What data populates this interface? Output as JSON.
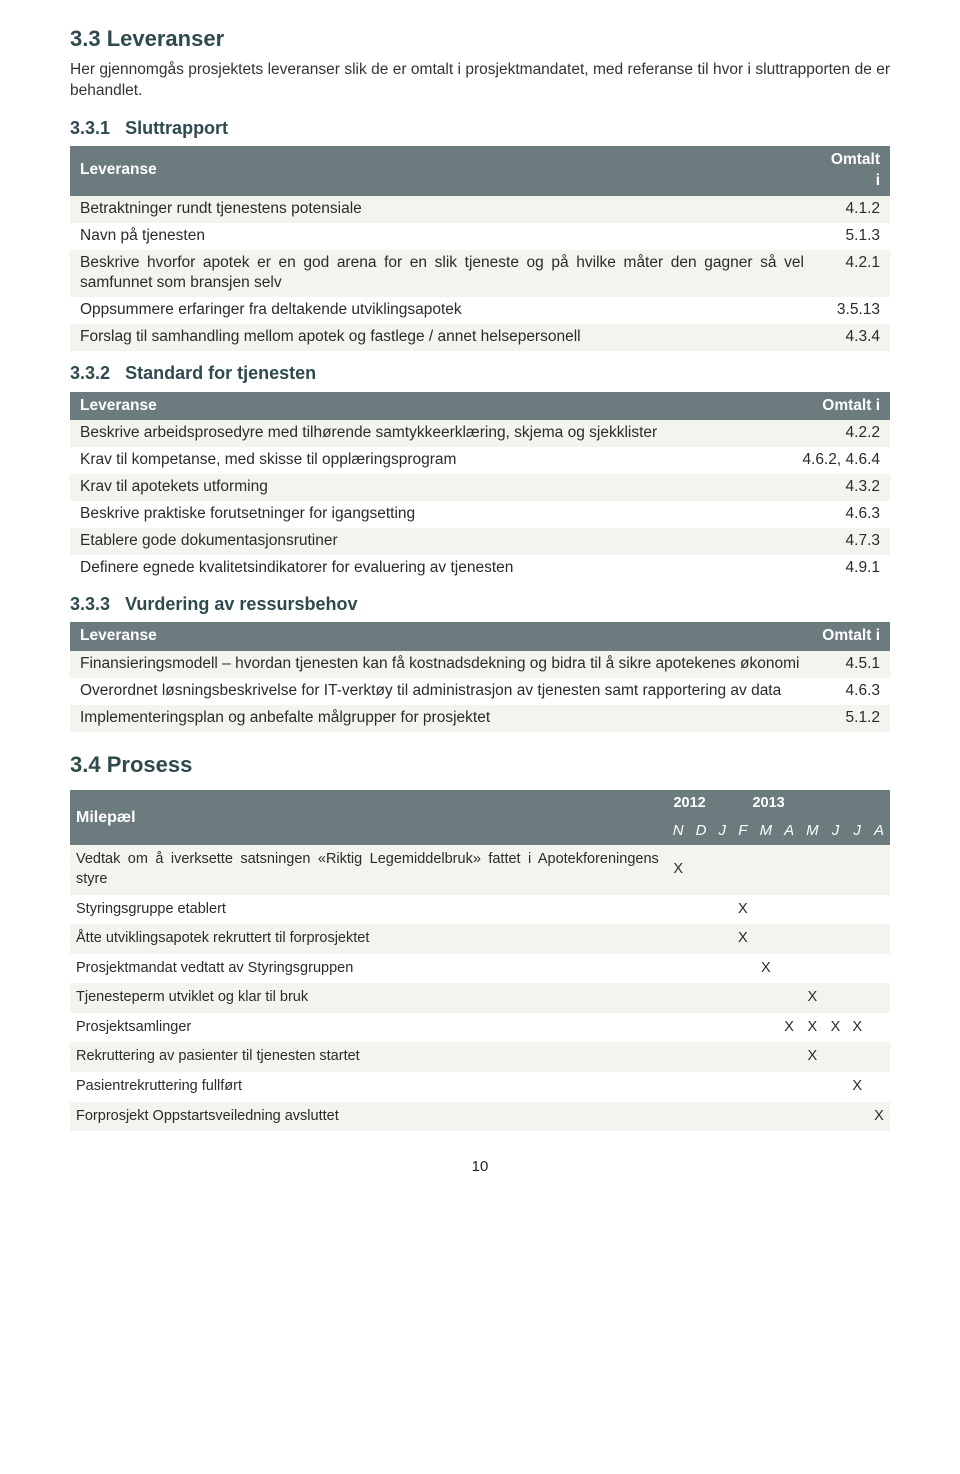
{
  "section": {
    "num": "3.3",
    "title": "Leveranser",
    "intro": "Her gjennomgås prosjektets leveranser slik de er omtalt i prosjektmandatet, med referanse til hvor i sluttrapporten de er behandlet."
  },
  "tables": {
    "header_left": "Leveranse",
    "header_right": "Omtalt i"
  },
  "t331": {
    "num": "3.3.1",
    "title": "Sluttrapport",
    "rows": [
      {
        "text": "Betraktninger rundt tjenestens potensiale",
        "ref": "4.1.2"
      },
      {
        "text": "Navn på tjenesten",
        "ref": "5.1.3"
      },
      {
        "text": "Beskrive hvorfor apotek er en god arena for en slik tjeneste og på hvilke måter den gagner så vel samfunnet som bransjen selv",
        "ref": "4.2.1",
        "justify": true
      },
      {
        "text": "Oppsummere erfaringer fra deltakende utviklingsapotek",
        "ref": "3.5.13"
      },
      {
        "text": "Forslag til samhandling mellom apotek og fastlege / annet helsepersonell",
        "ref": "4.3.4",
        "justify": true
      }
    ]
  },
  "t332": {
    "num": "3.3.2",
    "title": "Standard for tjenesten",
    "rows": [
      {
        "text": "Beskrive arbeidsprosedyre med tilhørende samtykkeerklæring, skjema og sjekklister",
        "ref": "4.2.2"
      },
      {
        "text": "Krav til kompetanse, med skisse til opplæringsprogram",
        "ref": "4.6.2, 4.6.4"
      },
      {
        "text": "Krav til apotekets utforming",
        "ref": "4.3.2"
      },
      {
        "text": "Beskrive praktiske forutsetninger for igangsetting",
        "ref": "4.6.3"
      },
      {
        "text": "Etablere gode dokumentasjonsrutiner",
        "ref": "4.7.3"
      },
      {
        "text": "Definere egnede kvalitetsindikatorer for evaluering av tjenesten",
        "ref": "4.9.1"
      }
    ]
  },
  "t333": {
    "num": "3.3.3",
    "title": "Vurdering av ressursbehov",
    "rows": [
      {
        "text": "Finansieringsmodell – hvordan tjenesten kan få kostnadsdekning og bidra til å sikre apotekenes økonomi",
        "ref": "4.5.1"
      },
      {
        "text": "Overordnet løsningsbeskrivelse for IT-verktøy til administrasjon av tjenesten samt rapportering av data",
        "ref": "4.6.3",
        "justify": true
      },
      {
        "text": "Implementeringsplan og anbefalte målgrupper for prosjektet",
        "ref": "5.1.2"
      }
    ]
  },
  "prosess": {
    "num": "3.4",
    "title": "Prosess",
    "header_label": "Milepæl",
    "year1": "2012",
    "year2": "2013",
    "months": [
      "N",
      "D",
      "J",
      "F",
      "M",
      "A",
      "M",
      "J",
      "J",
      "A"
    ],
    "rows": [
      {
        "text": "Vedtak om å iverksette satsningen «Riktig Legemiddelbruk» fattet i Apotekforeningens styre",
        "marks": [
          "X",
          "",
          "",
          "",
          "",
          "",
          "",
          "",
          "",
          ""
        ],
        "justify": true
      },
      {
        "text": "Styringsgruppe etablert",
        "marks": [
          "",
          "",
          "",
          "X",
          "",
          "",
          "",
          "",
          "",
          ""
        ]
      },
      {
        "text": "Åtte utviklingsapotek rekruttert til forprosjektet",
        "marks": [
          "",
          "",
          "",
          "X",
          "",
          "",
          "",
          "",
          "",
          ""
        ]
      },
      {
        "text": "Prosjektmandat vedtatt av Styringsgruppen",
        "marks": [
          "",
          "",
          "",
          "",
          "X",
          "",
          "",
          "",
          "",
          ""
        ]
      },
      {
        "text": "Tjenesteperm utviklet og klar til bruk",
        "marks": [
          "",
          "",
          "",
          "",
          "",
          "",
          "X",
          "",
          "",
          ""
        ]
      },
      {
        "text": "Prosjektsamlinger",
        "marks": [
          "",
          "",
          "",
          "",
          "",
          "X",
          "X",
          "X",
          "X",
          ""
        ]
      },
      {
        "text": "Rekruttering av pasienter til tjenesten startet",
        "marks": [
          "",
          "",
          "",
          "",
          "",
          "",
          "X",
          "",
          "",
          ""
        ]
      },
      {
        "text": "Pasientrekruttering fullført",
        "marks": [
          "",
          "",
          "",
          "",
          "",
          "",
          "",
          "",
          "X",
          ""
        ]
      },
      {
        "text": "Forprosjekt Oppstartsveiledning avsluttet",
        "marks": [
          "",
          "",
          "",
          "",
          "",
          "",
          "",
          "",
          "",
          "X"
        ]
      }
    ]
  },
  "pagenum": "10",
  "colors": {
    "header_bg": "#6c7b7d",
    "row_odd": "#f2f5ee",
    "row_even": "#ffffff",
    "heading": "#2f4a4d"
  }
}
